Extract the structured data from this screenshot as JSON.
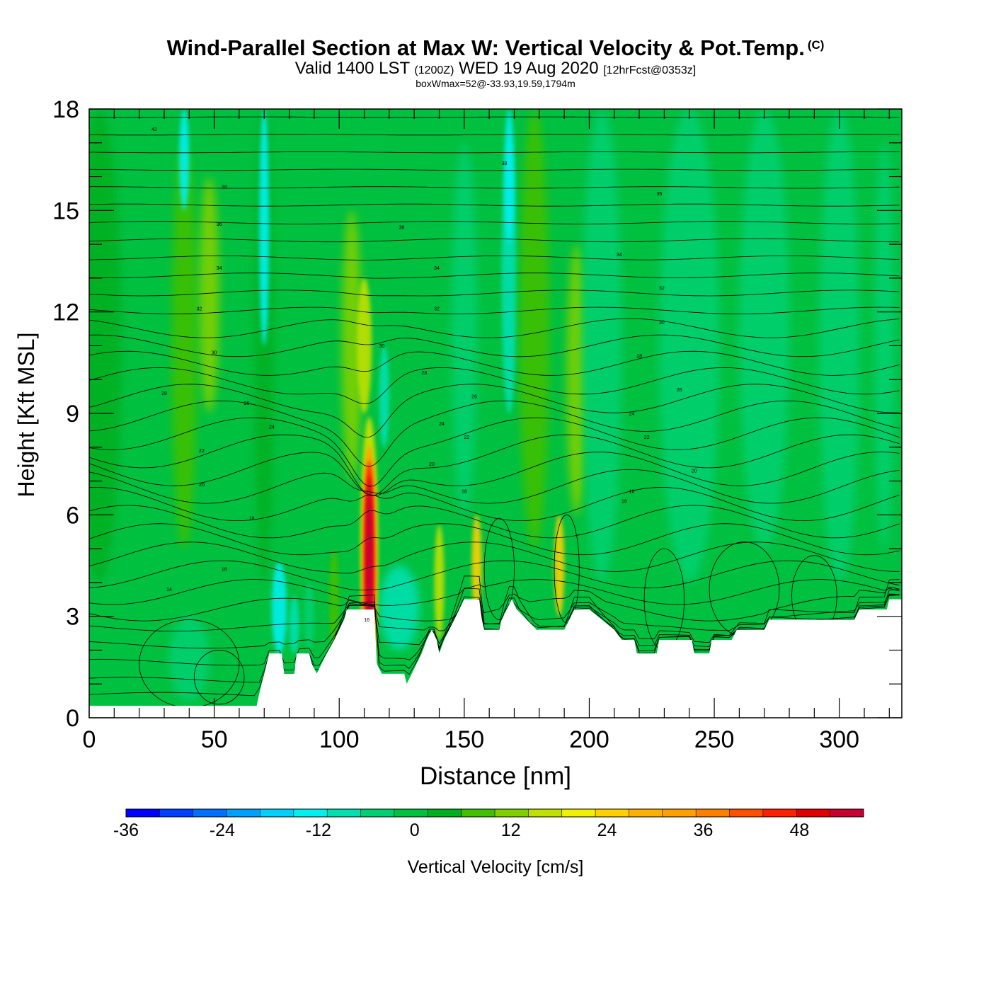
{
  "title": {
    "main": "Wind-Parallel Section at Max W: Vertical Velocity & Pot.Temp.",
    "copyright": "(C)",
    "valid_prefix": "Valid 1400 LST",
    "valid_z": "(1200Z)",
    "valid_date": "WED 19 Aug 2020",
    "valid_fcst": "[12hrFcst@0353z]",
    "box": "boxWmax=52@-33.93,19.59,1794m"
  },
  "chart_data": {
    "type": "heatmap",
    "xlabel": "Distance [nm]",
    "ylabel": "Height [Kft MSL]",
    "xlim": [
      0,
      325
    ],
    "ylim": [
      0,
      18
    ],
    "x_ticks": [
      "0",
      "50",
      "100",
      "150",
      "200",
      "250",
      "300"
    ],
    "y_ticks": [
      "0",
      "3",
      "6",
      "9",
      "12",
      "15",
      "18"
    ],
    "colorbar": {
      "label": "Vertical Velocity [cm/s]",
      "range": [
        -36,
        56
      ],
      "step": 4,
      "tick_labels": [
        "-36",
        "-24",
        "-12",
        "0",
        "12",
        "24",
        "36",
        "48"
      ],
      "colors": [
        "#0000ff",
        "#0040ff",
        "#0070ff",
        "#00a0ff",
        "#00d0ff",
        "#00f0f0",
        "#00e0b0",
        "#00d070",
        "#00c040",
        "#00b020",
        "#40c000",
        "#80d000",
        "#c0e000",
        "#f0f000",
        "#ffd000",
        "#ffb000",
        "#ffa000",
        "#ff8000",
        "#ff5000",
        "#ff2000",
        "#e00000",
        "#c80030"
      ]
    },
    "terrain_kft": [
      [
        0,
        0.35
      ],
      [
        67,
        0.35
      ],
      [
        68,
        0.7
      ],
      [
        70,
        1.3
      ],
      [
        72,
        1.9
      ],
      [
        77,
        1.9
      ],
      [
        78,
        1.3
      ],
      [
        82,
        1.3
      ],
      [
        83,
        1.9
      ],
      [
        88,
        1.9
      ],
      [
        89,
        1.6
      ],
      [
        91,
        1.3
      ],
      [
        93,
        1.6
      ],
      [
        95,
        1.9
      ],
      [
        98,
        2.3
      ],
      [
        100,
        2.6
      ],
      [
        102,
        2.9
      ],
      [
        103,
        3.2
      ],
      [
        114,
        3.2
      ],
      [
        115,
        1.6
      ],
      [
        117,
        1.3
      ],
      [
        126,
        1.3
      ],
      [
        127,
        1.0
      ],
      [
        129,
        1.3
      ],
      [
        131,
        1.6
      ],
      [
        133,
        1.9
      ],
      [
        135,
        2.3
      ],
      [
        137,
        2.6
      ],
      [
        139,
        2.3
      ],
      [
        140,
        1.9
      ],
      [
        142,
        2.3
      ],
      [
        144,
        2.6
      ],
      [
        146,
        2.9
      ],
      [
        148,
        3.2
      ],
      [
        150,
        3.5
      ],
      [
        156,
        3.5
      ],
      [
        157,
        2.9
      ],
      [
        158,
        2.6
      ],
      [
        164,
        2.6
      ],
      [
        165,
        2.9
      ],
      [
        167,
        3.2
      ],
      [
        169,
        3.5
      ],
      [
        171,
        3.2
      ],
      [
        175,
        2.9
      ],
      [
        179,
        2.6
      ],
      [
        190,
        2.6
      ],
      [
        192,
        2.9
      ],
      [
        194,
        3.2
      ],
      [
        200,
        3.2
      ],
      [
        205,
        2.9
      ],
      [
        210,
        2.6
      ],
      [
        213,
        2.3
      ],
      [
        218,
        2.3
      ],
      [
        219,
        1.9
      ],
      [
        227,
        1.9
      ],
      [
        228,
        2.3
      ],
      [
        241,
        2.3
      ],
      [
        242,
        1.9
      ],
      [
        248,
        1.9
      ],
      [
        249,
        2.3
      ],
      [
        257,
        2.3
      ],
      [
        259,
        2.6
      ],
      [
        270,
        2.6
      ],
      [
        272,
        2.9
      ],
      [
        306,
        2.9
      ],
      [
        308,
        3.2
      ],
      [
        319,
        3.2
      ],
      [
        320,
        3.5
      ],
      [
        325,
        3.5
      ]
    ],
    "wmax_core": {
      "x": 112,
      "z": 4.6,
      "value": 52
    },
    "isentrope_labels": [
      {
        "x": 26,
        "z": 17.4,
        "label": "42"
      },
      {
        "x": 54,
        "z": 15.7,
        "label": "38"
      },
      {
        "x": 52,
        "z": 14.6,
        "label": "36"
      },
      {
        "x": 52,
        "z": 13.3,
        "label": "34"
      },
      {
        "x": 44,
        "z": 12.1,
        "label": "32"
      },
      {
        "x": 50,
        "z": 10.8,
        "label": "30"
      },
      {
        "x": 30,
        "z": 9.6,
        "label": "28"
      },
      {
        "x": 63,
        "z": 9.3,
        "label": "26"
      },
      {
        "x": 73,
        "z": 8.6,
        "label": "24"
      },
      {
        "x": 45,
        "z": 7.9,
        "label": "22"
      },
      {
        "x": 45,
        "z": 6.9,
        "label": "20"
      },
      {
        "x": 65,
        "z": 5.9,
        "label": "18"
      },
      {
        "x": 54,
        "z": 4.4,
        "label": "16"
      },
      {
        "x": 32,
        "z": 3.8,
        "label": "14"
      },
      {
        "x": 166,
        "z": 16.4,
        "label": "38"
      },
      {
        "x": 125,
        "z": 14.5,
        "label": "38"
      },
      {
        "x": 139,
        "z": 13.3,
        "label": "34"
      },
      {
        "x": 139,
        "z": 12.1,
        "label": "32"
      },
      {
        "x": 117,
        "z": 11.0,
        "label": "30"
      },
      {
        "x": 134,
        "z": 10.2,
        "label": "28"
      },
      {
        "x": 154,
        "z": 9.5,
        "label": "26"
      },
      {
        "x": 141,
        "z": 8.7,
        "label": "24"
      },
      {
        "x": 151,
        "z": 8.3,
        "label": "22"
      },
      {
        "x": 137,
        "z": 7.5,
        "label": "20"
      },
      {
        "x": 150,
        "z": 6.7,
        "label": "18"
      },
      {
        "x": 228,
        "z": 15.5,
        "label": "36"
      },
      {
        "x": 212,
        "z": 13.7,
        "label": "34"
      },
      {
        "x": 229,
        "z": 12.7,
        "label": "32"
      },
      {
        "x": 229,
        "z": 11.7,
        "label": "30"
      },
      {
        "x": 220,
        "z": 10.7,
        "label": "28"
      },
      {
        "x": 236,
        "z": 9.7,
        "label": "26"
      },
      {
        "x": 217,
        "z": 9.0,
        "label": "24"
      },
      {
        "x": 223,
        "z": 8.3,
        "label": "22"
      },
      {
        "x": 242,
        "z": 7.3,
        "label": "20"
      },
      {
        "x": 217,
        "z": 6.7,
        "label": "18"
      },
      {
        "x": 214,
        "z": 6.4,
        "label": "16"
      },
      {
        "x": 111,
        "z": 2.9,
        "label": "16"
      }
    ]
  }
}
